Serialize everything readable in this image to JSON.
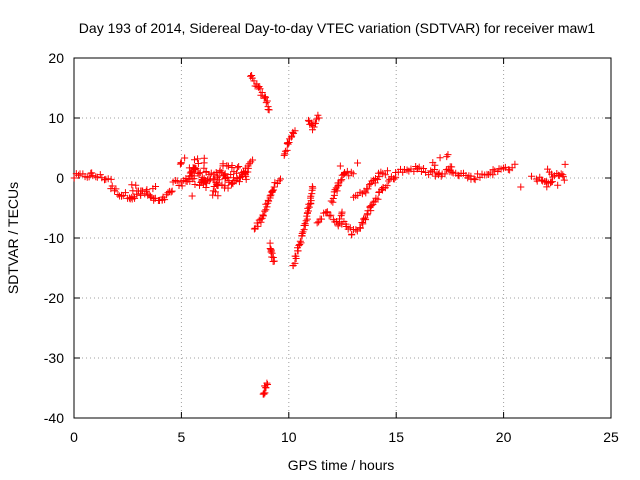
{
  "chart_data": {
    "type": "scatter",
    "title": "Day 193 of 2014, Sidereal Day-to-day VTEC variation (SDTVAR) for receiver maw1",
    "xlabel": "GPS time / hours",
    "ylabel": "SDTVAR / TECUs",
    "xlim": [
      0,
      25
    ],
    "ylim": [
      -40,
      20
    ],
    "xticks": [
      0,
      5,
      10,
      15,
      20,
      25
    ],
    "yticks": [
      -40,
      -30,
      -20,
      -10,
      0,
      10,
      20
    ],
    "grid": true,
    "marker": "plus",
    "color": "#ff0000",
    "segments": [
      {
        "x": [
          0.0,
          0.8,
          1.7
        ],
        "y": [
          0.2,
          0.5,
          -0.2
        ]
      },
      {
        "x": [
          1.7,
          2.2,
          2.7,
          3.2,
          3.7,
          4.1,
          4.6
        ],
        "y": [
          -1.5,
          -2.8,
          -3.0,
          -2.2,
          -3.6,
          -3.9,
          -2.0
        ]
      },
      {
        "x": [
          4.6,
          5.2,
          5.6,
          6.2,
          6.8,
          7.4,
          8.0,
          8.3
        ],
        "y": [
          -1.0,
          -0.5,
          1.5,
          -0.5,
          0.8,
          -0.8,
          1.2,
          2.5
        ]
      },
      {
        "x": [
          8.2,
          8.6,
          8.9,
          9.1
        ],
        "y": [
          17.0,
          14.8,
          13.2,
          11.5
        ]
      },
      {
        "x": [
          8.4,
          8.7,
          9.0,
          9.3,
          9.6
        ],
        "y": [
          -8.5,
          -7.0,
          -4.5,
          -1.5,
          -0.5
        ]
      },
      {
        "x": [
          9.1,
          9.2,
          9.3
        ],
        "y": [
          -11.0,
          -12.5,
          -13.8
        ]
      },
      {
        "x": [
          8.8,
          8.9,
          9.0
        ],
        "y": [
          -36.5,
          -35.0,
          -34.0
        ]
      },
      {
        "x": [
          9.8,
          10.0,
          10.3
        ],
        "y": [
          4.0,
          6.0,
          8.0
        ]
      },
      {
        "x": [
          10.2,
          10.6,
          11.0,
          11.1
        ],
        "y": [
          -14.5,
          -10.0,
          -4.0,
          -1.5
        ]
      },
      {
        "x": [
          10.9,
          11.1,
          11.4
        ],
        "y": [
          10.0,
          8.5,
          10.5
        ]
      },
      {
        "x": [
          11.3,
          11.8,
          12.3,
          12.5
        ],
        "y": [
          -7.0,
          -6.0,
          -7.5,
          -6.0
        ]
      },
      {
        "x": [
          12.0,
          12.3,
          12.6,
          13.0
        ],
        "y": [
          -4.0,
          -1.0,
          1.0,
          0.5
        ]
      },
      {
        "x": [
          12.5,
          12.9,
          13.3,
          13.8,
          14.4,
          15.0
        ],
        "y": [
          -7.5,
          -9.0,
          -8.5,
          -5.0,
          -1.5,
          0.5
        ]
      },
      {
        "x": [
          13.0,
          13.6,
          14.2,
          14.6
        ],
        "y": [
          -3.0,
          -2.0,
          0.5,
          1.0
        ]
      },
      {
        "x": [
          15.0,
          16.0,
          17.0,
          17.5,
          18.5,
          19.5,
          20.5
        ],
        "y": [
          1.2,
          1.5,
          0.5,
          1.5,
          0.0,
          1.0,
          2.0
        ]
      },
      {
        "x": [
          21.5,
          22.0,
          22.7
        ],
        "y": [
          0.0,
          -1.0,
          1.0
        ]
      }
    ],
    "jitter_points": [
      {
        "x": 3.2,
        "y": -2.2,
        "spread": 1.4,
        "n": 12
      },
      {
        "x": 5.5,
        "y": 1.0,
        "spread": 2.5,
        "n": 25
      },
      {
        "x": 6.5,
        "y": -1.0,
        "spread": 2.2,
        "n": 25
      },
      {
        "x": 7.5,
        "y": 0.5,
        "spread": 2.2,
        "n": 25
      },
      {
        "x": 17.3,
        "y": 2.5,
        "spread": 1.5,
        "n": 8
      },
      {
        "x": 22.3,
        "y": 0.5,
        "spread": 2.0,
        "n": 10
      }
    ],
    "isolated_points": [
      {
        "x": 5.0,
        "y": 2.5
      },
      {
        "x": 5.5,
        "y": -3.0
      },
      {
        "x": 8.1,
        "y": 2.0
      },
      {
        "x": 12.4,
        "y": 2.0
      },
      {
        "x": 13.2,
        "y": 2.5
      },
      {
        "x": 20.8,
        "y": -1.5
      },
      {
        "x": 21.3,
        "y": 0.3
      }
    ]
  }
}
